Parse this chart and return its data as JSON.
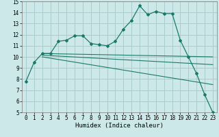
{
  "xlabel": "Humidex (Indice chaleur)",
  "bg_color": "#cce8e8",
  "grid_color": "#aacccc",
  "line_color": "#1a7a6a",
  "xlim": [
    -0.5,
    23.5
  ],
  "ylim": [
    5,
    15
  ],
  "xticks": [
    0,
    1,
    2,
    3,
    4,
    5,
    6,
    7,
    8,
    9,
    10,
    11,
    12,
    13,
    14,
    15,
    16,
    17,
    18,
    19,
    20,
    21,
    22,
    23
  ],
  "yticks": [
    5,
    6,
    7,
    8,
    9,
    10,
    11,
    12,
    13,
    14,
    15
  ],
  "series1_x": [
    0,
    1,
    2,
    3,
    4,
    5,
    6,
    7,
    8,
    9,
    10,
    11,
    12,
    13,
    14,
    15,
    16,
    17,
    18,
    19,
    20,
    21,
    22,
    23
  ],
  "series1_y": [
    7.8,
    9.5,
    10.3,
    10.3,
    11.4,
    11.5,
    11.9,
    11.9,
    11.2,
    11.1,
    11.0,
    11.4,
    12.5,
    13.3,
    14.6,
    13.8,
    14.1,
    13.9,
    13.9,
    11.5,
    10.0,
    8.5,
    6.6,
    5.0
  ],
  "series2_x": [
    2,
    23
  ],
  "series2_y": [
    10.3,
    10.0
  ],
  "series3_x": [
    2,
    23
  ],
  "series3_y": [
    10.15,
    9.3
  ],
  "series4_x": [
    2,
    23
  ],
  "series4_y": [
    10.0,
    7.5
  ]
}
